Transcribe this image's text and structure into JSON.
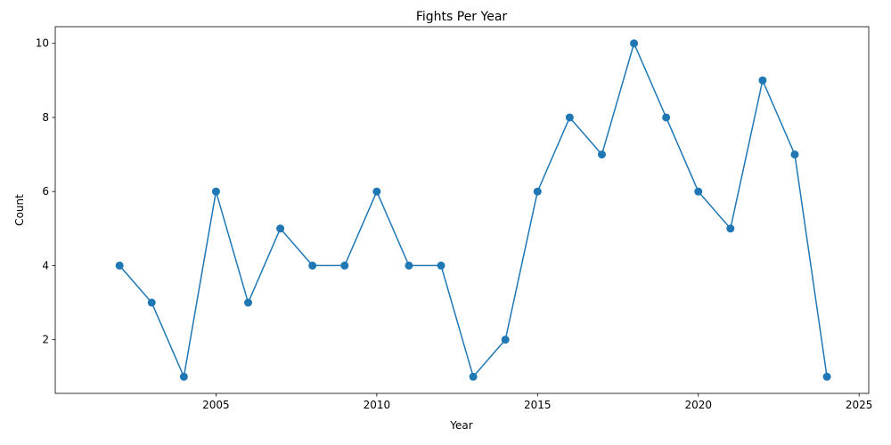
{
  "chart_data": {
    "type": "line",
    "title": "Fights Per Year",
    "xlabel": "Year",
    "ylabel": "Count",
    "xlim": [
      2000,
      2025.3
    ],
    "ylim": [
      0.55,
      10.45
    ],
    "xticks": [
      2005,
      2010,
      2015,
      2020,
      2025
    ],
    "yticks": [
      2,
      4,
      6,
      8,
      10
    ],
    "grid": false,
    "line_color": "#1f77b4",
    "marker": "circle",
    "x": [
      2002,
      2003,
      2004,
      2005,
      2006,
      2007,
      2008,
      2009,
      2010,
      2011,
      2012,
      2013,
      2014,
      2015,
      2016,
      2017,
      2018,
      2019,
      2020,
      2021,
      2022,
      2023,
      2024
    ],
    "y": [
      4,
      3,
      1,
      6,
      3,
      5,
      4,
      4,
      6,
      4,
      4,
      1,
      2,
      6,
      8,
      7,
      10,
      8,
      6,
      5,
      9,
      7,
      1
    ]
  }
}
